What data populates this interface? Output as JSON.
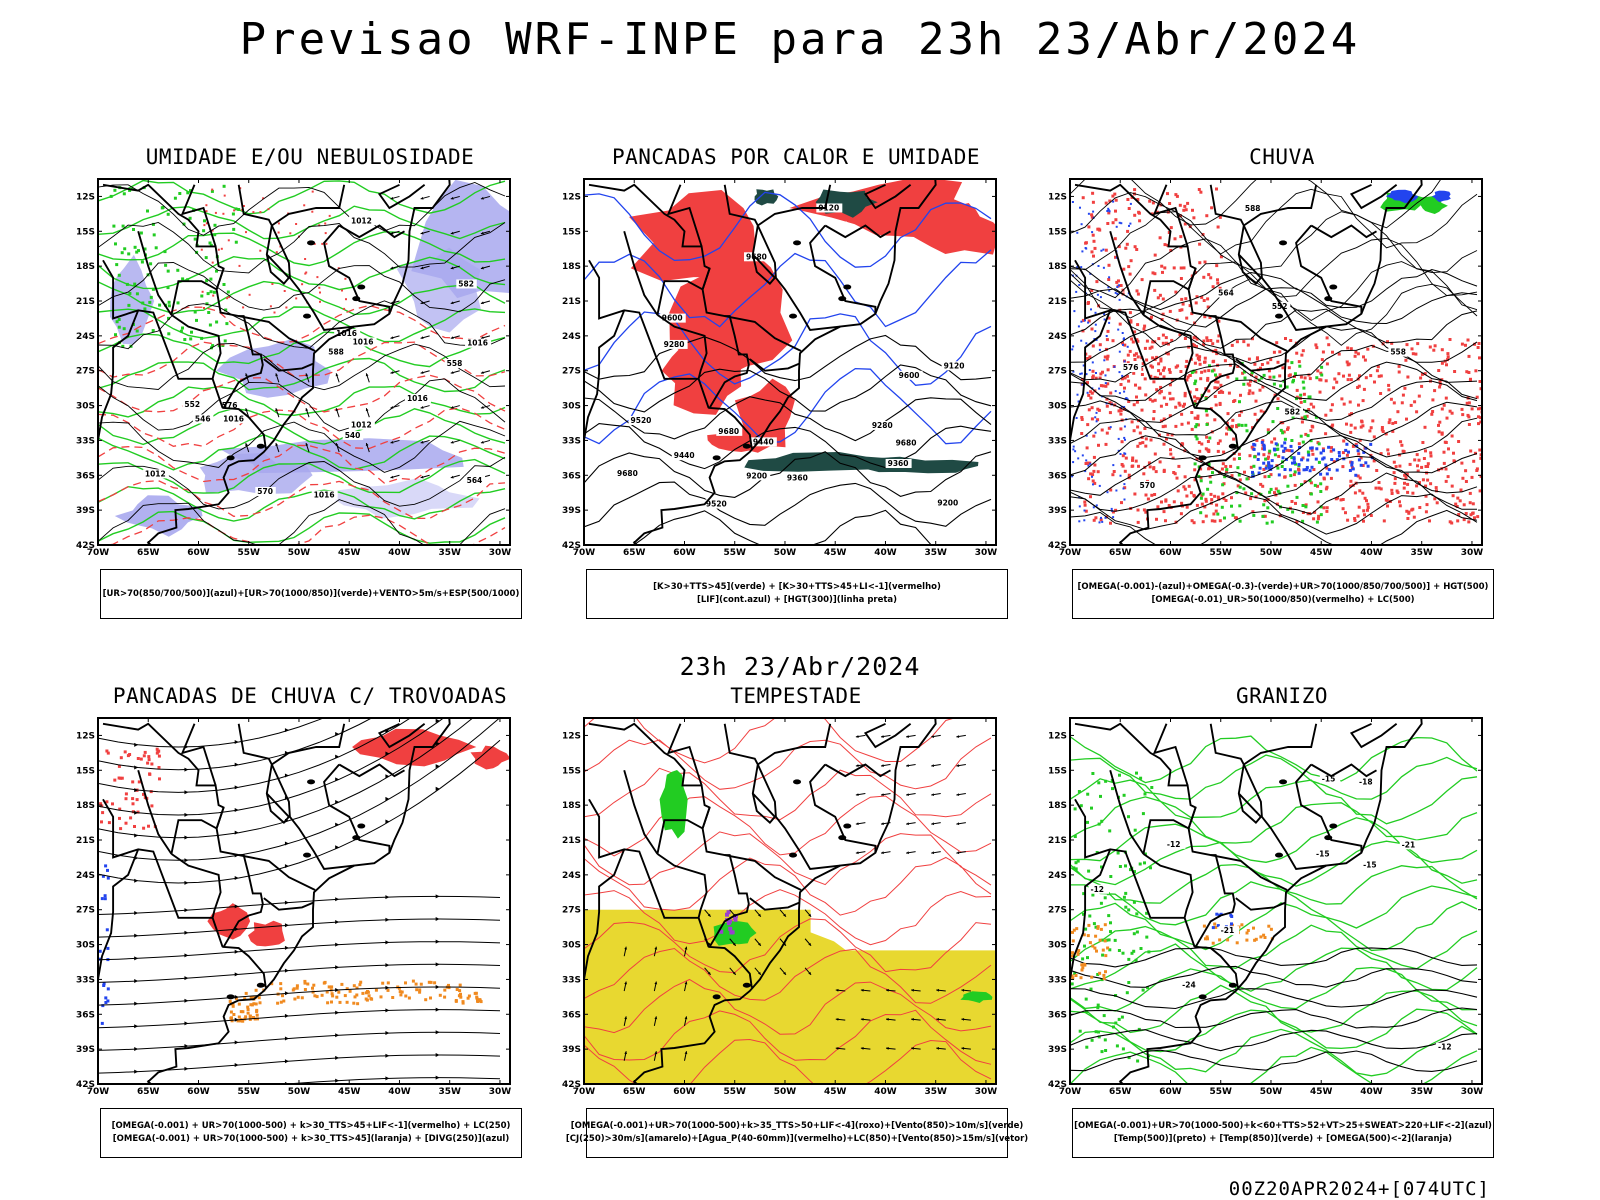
{
  "title": "Previsao WRF-INPE  para 23h 23/Abr/2024",
  "mid_time": "23h 23/Abr/2024",
  "footer": "00Z20APR2024+[074UTC]",
  "axes": {
    "lat_labels": [
      "12S",
      "15S",
      "18S",
      "21S",
      "24S",
      "27S",
      "30S",
      "33S",
      "36S",
      "39S",
      "42S"
    ],
    "lon_labels": [
      "70W",
      "65W",
      "60W",
      "55W",
      "50W",
      "45W",
      "40W",
      "35W",
      "30W"
    ]
  },
  "colors": {
    "red": "#f04040",
    "green": "#22cc22",
    "blue": "#2244ee",
    "lavender": "#a8a8ee",
    "darkteal": "#1f4a44",
    "yellow": "#e8d830",
    "orange": "#f08a20",
    "purple": "#9a40d0"
  },
  "panels": [
    {
      "title": "UMIDADE E/OU NEBULOSIDADE",
      "legend": [
        "[UR>70(850/700/500)](azul)+[UR>70(1000/850)](verde)+VENTO>5m/s+ESP(500/1000)"
      ],
      "contour_labels": [
        "1012",
        "1012",
        "1016",
        "1016",
        "1016",
        "1016",
        "1012",
        "1016",
        "1016",
        "564",
        "570",
        "576",
        "582",
        "588",
        "552",
        "558",
        "546",
        "540"
      ]
    },
    {
      "title": "PANCADAS POR CALOR E UMIDADE",
      "legend": [
        "[K>30+TTS>45](verde) + [K>30+TTS>45+LI<-1](vermelho)",
        "[LIF](cont.azul) + [HGT(300)](linha preta)"
      ],
      "contour_labels": [
        "9680",
        "9680",
        "9680",
        "9680",
        "9600",
        "9600",
        "9520",
        "9520",
        "9440",
        "9440",
        "9360",
        "9360",
        "9280",
        "9280",
        "9200",
        "9200",
        "9120",
        "9120"
      ]
    },
    {
      "title": "CHUVA",
      "legend": [
        "[OMEGA(-0.001)-(azul)+OMEGA(-0.3)-(verde)+UR>70(1000/850/700/500)] + HGT(500)",
        "[OMEGA(-0.01)_UR>50(1000/850)(vermelho) + LC(500)"
      ],
      "contour_labels": [
        "588",
        "582",
        "576",
        "570",
        "564",
        "558",
        "552"
      ]
    },
    {
      "title": "PANCADAS DE CHUVA C/ TROVOADAS",
      "legend": [
        "[OMEGA(-0.001) + UR>70(1000-500) + k>30_TTS>45+LIF<-1](vermelho) + LC(250)",
        "[OMEGA(-0.001) + UR>70(1000-500) + k>30_TTS>45](laranja) + [DIVG(250)](azul)"
      ],
      "contour_labels": []
    },
    {
      "title": "TEMPESTADE",
      "legend": [
        "[OMEGA(-0.001)+UR>70(1000-500)+k>35_TTS>50+LIF<-4](roxo)+[Vento(850)>10m/s](verde)",
        "[CJ(250)>30m/s](amarelo)+[Agua_P(40-60mm)](vermelho)+LC(850)+[Vento(850)>15m/s](vetor)"
      ],
      "contour_labels": []
    },
    {
      "title": "GRANIZO",
      "legend": [
        "[OMEGA(-0.001)+UR>70(1000-500)+k<60+TTS>52+VT>25+SWEAT>220+LIF<-2](azul)",
        "[Temp(500)](preto) + [Temp(850)](verde) + [OMEGA(500)<-2](laranja)"
      ],
      "contour_labels": [
        "-12",
        "-12",
        "-15",
        "-15",
        "-18",
        "-21",
        "-21",
        "-24",
        "-12",
        "-15"
      ]
    }
  ]
}
